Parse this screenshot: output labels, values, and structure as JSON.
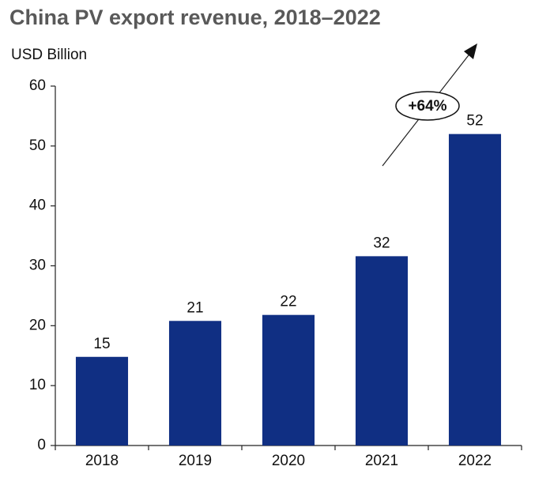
{
  "chart_data": {
    "type": "bar",
    "title": "China PV export revenue, 2018–2022",
    "y_label": "USD Billion",
    "categories": [
      "2018",
      "2019",
      "2020",
      "2021",
      "2022"
    ],
    "values": [
      14.8,
      20.8,
      21.8,
      31.6,
      52
    ],
    "value_labels": [
      "15",
      "21",
      "22",
      "32",
      "52"
    ],
    "color": "#102f83",
    "ylim": [
      0,
      60
    ],
    "yticks": [
      0,
      10,
      20,
      30,
      40,
      50,
      60
    ],
    "grid": false,
    "annotation": "+64%"
  }
}
